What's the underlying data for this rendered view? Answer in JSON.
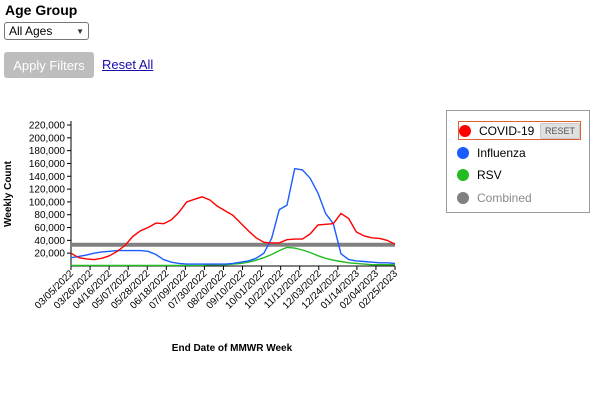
{
  "filters": {
    "age_group_label": "Age Group",
    "age_group_value": "All Ages",
    "apply_label": "Apply Filters",
    "reset_all_label": "Reset All"
  },
  "legend": {
    "items": [
      {
        "label": "COVID-19",
        "color": "#ff0000",
        "selected": true,
        "dimmed": false
      },
      {
        "label": "Influenza",
        "color": "#1a5cff",
        "selected": false,
        "dimmed": false
      },
      {
        "label": "RSV",
        "color": "#22bb22",
        "selected": false,
        "dimmed": false
      },
      {
        "label": "Combined",
        "color": "#808080",
        "selected": false,
        "dimmed": true
      }
    ],
    "reset_label": "RESET"
  },
  "chart_data": {
    "type": "line",
    "xlabel": "End Date of MMWR Week",
    "ylabel": "Weekly Count",
    "ylim": [
      0,
      220000
    ],
    "yticks": [
      20000,
      40000,
      60000,
      80000,
      100000,
      120000,
      140000,
      160000,
      180000,
      200000,
      220000
    ],
    "ytick_labels": [
      "20,000",
      "40,000",
      "60,000",
      "80,000",
      "100,000",
      "120,000",
      "140,000",
      "160,000",
      "180,000",
      "200,000",
      "220,000"
    ],
    "x_tick_labels": [
      "03/05/2022",
      "03/26/2022",
      "04/16/2022",
      "05/07/2022",
      "05/28/2022",
      "06/18/2022",
      "07/09/2022",
      "07/30/2022",
      "08/20/2022",
      "09/10/2022",
      "10/01/2022",
      "10/22/2022",
      "11/12/2022",
      "12/03/2022",
      "12/24/2022",
      "01/14/2023",
      "02/04/2023",
      "02/25/2023"
    ],
    "series": [
      {
        "name": "COVID-19",
        "color": "#ff0000",
        "values": [
          20000,
          13000,
          11000,
          10000,
          12000,
          16000,
          23000,
          32000,
          46000,
          55000,
          60000,
          67000,
          66000,
          72000,
          84000,
          100000,
          104000,
          108000,
          103000,
          93000,
          86000,
          79000,
          67000,
          55000,
          44000,
          37000,
          36000,
          36000,
          41000,
          42000,
          42000,
          50000,
          64000,
          65000,
          66000,
          82000,
          74000,
          53000,
          47000,
          44000,
          43000,
          40000,
          34000
        ]
      },
      {
        "name": "Influenza",
        "color": "#1a5cff",
        "values": [
          13000,
          15000,
          17000,
          20000,
          22000,
          23000,
          24000,
          24000,
          24000,
          24000,
          23000,
          18000,
          10000,
          6000,
          4000,
          3000,
          3000,
          3000,
          3000,
          3000,
          3000,
          4000,
          6000,
          8000,
          12000,
          20000,
          43000,
          88000,
          95000,
          152000,
          150000,
          137000,
          114000,
          82000,
          66000,
          19000,
          10000,
          8000,
          7000,
          6000,
          5000,
          5000,
          4000
        ]
      },
      {
        "name": "RSV",
        "color": "#22bb22",
        "values": [
          1000,
          1000,
          1000,
          1000,
          1000,
          1000,
          1000,
          1000,
          1000,
          1000,
          1000,
          1000,
          1000,
          1000,
          1000,
          1000,
          1000,
          1000,
          2000,
          2000,
          2000,
          3000,
          4000,
          6000,
          9000,
          13000,
          18000,
          24000,
          29000,
          28000,
          25000,
          21000,
          16000,
          12000,
          9000,
          7000,
          5000,
          4000,
          3000,
          2000,
          2000,
          2000,
          2000
        ]
      },
      {
        "name": "Combined",
        "color": "#808080",
        "values": [
          33000,
          33000,
          33000,
          33000,
          33000,
          33000,
          33000,
          33000,
          33000,
          33000,
          33000,
          33000,
          33000,
          33000,
          33000,
          33000,
          33000,
          33000,
          33000,
          33000,
          33000,
          33000,
          33000,
          33000,
          33000,
          33000,
          33000,
          33000,
          33000,
          33000,
          33000,
          33000,
          33000,
          33000,
          33000,
          33000,
          33000,
          33000,
          33000,
          33000,
          33000,
          33000,
          33000
        ]
      }
    ]
  }
}
